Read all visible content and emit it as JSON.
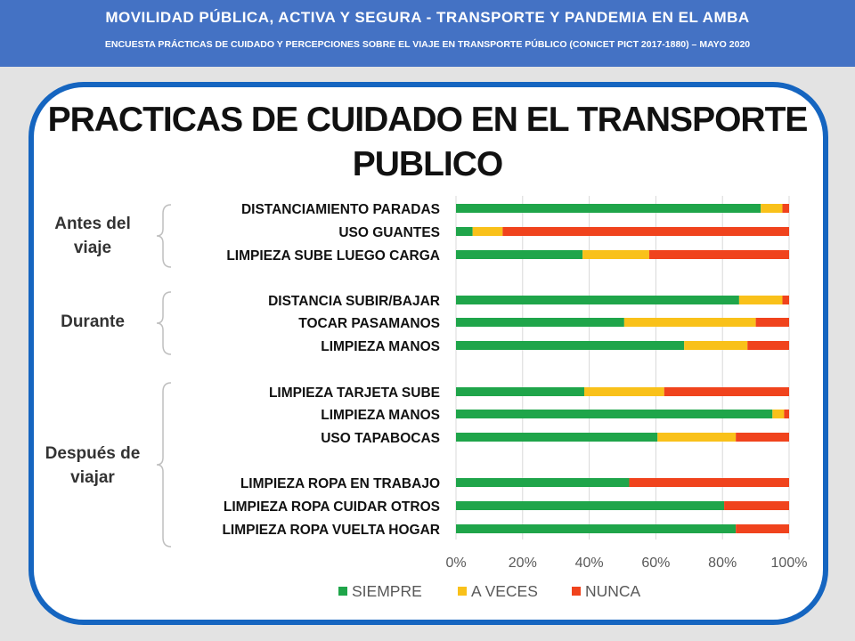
{
  "header": {
    "title": "MOVILIDAD PÚBLICA, ACTIVA Y SEGURA - TRANSPORTE Y PANDEMIA EN EL AMBA",
    "subtitle": "ENCUESTA PRÁCTICAS DE CUIDADO Y PERCEPCIONES SOBRE EL VIAJE EN TRANSPORTE PÚBLICO (CONICET PICT 2017-1880) – MAYO 2020"
  },
  "groups": {
    "antes": "Antes del viaje",
    "durante": "Durante",
    "despues": "Después de viajar"
  },
  "colors": {
    "siempre": "#1fa54a",
    "a_veces": "#f9c11a",
    "nunca": "#f0431d",
    "frame": "#1565c0",
    "banner": "#4472c4"
  },
  "chart_data": {
    "type": "bar",
    "orientation": "horizontal",
    "stacked": "percent",
    "title": "PRACTICAS DE CUIDADO EN EL TRANSPORTE PUBLICO",
    "categories": [
      "DISTANCIAMIENTO PARADAS",
      "USO GUANTES",
      "LIMPIEZA SUBE LUEGO CARGA",
      "DISTANCIA SUBIR/BAJAR",
      "TOCAR PASAMANOS",
      "LIMPIEZA MANOS",
      "LIMPIEZA TARJETA SUBE",
      "LIMPIEZA MANOS",
      "USO TAPABOCAS",
      "LIMPIEZA ROPA EN TRABAJO",
      "LIMPIEZA ROPA CUIDAR OTROS",
      "LIMPIEZA ROPA VUELTA HOGAR"
    ],
    "category_groups": [
      "antes",
      "antes",
      "antes",
      "durante",
      "durante",
      "durante",
      "despues",
      "despues",
      "despues",
      "despues",
      "despues",
      "despues"
    ],
    "series": [
      {
        "name": "SIEMPRE",
        "values": [
          91.5,
          5,
          38,
          85,
          50.5,
          68.5,
          38.5,
          95,
          60.5,
          52,
          80.5,
          84
        ]
      },
      {
        "name": "A VECES",
        "values": [
          6.5,
          9,
          20,
          13,
          39.5,
          19,
          24,
          3.5,
          23.5,
          0,
          0,
          0
        ]
      },
      {
        "name": "NUNCA",
        "values": [
          2,
          86,
          42,
          2,
          10,
          12.5,
          37.5,
          1.5,
          16,
          48,
          19.5,
          16
        ]
      }
    ],
    "x_ticks": [
      "0%",
      "20%",
      "40%",
      "60%",
      "80%",
      "100%"
    ],
    "xlim": [
      0,
      100
    ],
    "grid": true,
    "legend": "bottom"
  }
}
